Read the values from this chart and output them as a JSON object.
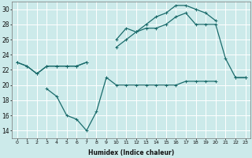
{
  "xlabel": "Humidex (Indice chaleur)",
  "bg_color": "#cceaea",
  "grid_color": "#ffffff",
  "line_color": "#1a6b6b",
  "x": [
    0,
    1,
    2,
    3,
    4,
    5,
    6,
    7,
    8,
    9,
    10,
    11,
    12,
    13,
    14,
    15,
    16,
    17,
    18,
    19,
    20,
    21,
    22,
    23
  ],
  "line_top": [
    23,
    22.5,
    21.5,
    22.5,
    22.5,
    22.5,
    22.5,
    23,
    null,
    null,
    26,
    27.5,
    27,
    28,
    29,
    29.5,
    30.5,
    30.5,
    30,
    29.5,
    28.5,
    null,
    null,
    null
  ],
  "line_mid": [
    23,
    22.5,
    21.5,
    22.5,
    22.5,
    22.5,
    22.5,
    23,
    null,
    null,
    25,
    26,
    27,
    27.5,
    27.5,
    28,
    29,
    29.5,
    28,
    28,
    28,
    23.5,
    21,
    21
  ],
  "line_bot": [
    null,
    null,
    null,
    19.5,
    18.5,
    16,
    15.5,
    14,
    16.5,
    21,
    20,
    20,
    20,
    20,
    20,
    20,
    20,
    20.5,
    20.5,
    20.5,
    20.5,
    null,
    21,
    21
  ],
  "ylim": [
    13,
    31
  ],
  "xlim": [
    -0.5,
    23.5
  ],
  "yticks": [
    14,
    16,
    18,
    20,
    22,
    24,
    26,
    28,
    30
  ],
  "xticks": [
    0,
    1,
    2,
    3,
    4,
    5,
    6,
    7,
    8,
    9,
    10,
    11,
    12,
    13,
    14,
    15,
    16,
    17,
    18,
    19,
    20,
    21,
    22,
    23
  ]
}
